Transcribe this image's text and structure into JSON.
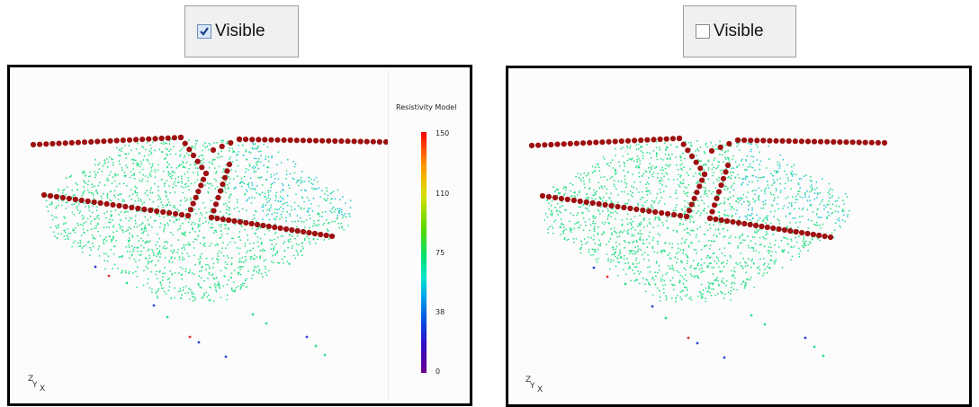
{
  "left_panel": {
    "checkbox": {
      "label": "Visible",
      "checked": true
    },
    "legend": {
      "title": "Resistivity Model",
      "ticks": [
        "150",
        "110",
        "75",
        "38",
        "0"
      ]
    }
  },
  "right_panel": {
    "checkbox": {
      "label": "Visible",
      "checked": false
    }
  },
  "axes_triad": {
    "z": "Z",
    "y": "Y",
    "x": "X"
  },
  "colors": {
    "electrode": "#9e1010",
    "point_main": "#2ee08a",
    "point_alt": "#2cc8d8",
    "point_low": "#3040d8"
  },
  "icons": [
    "checkmark-icon",
    "axes-triad-icon"
  ]
}
